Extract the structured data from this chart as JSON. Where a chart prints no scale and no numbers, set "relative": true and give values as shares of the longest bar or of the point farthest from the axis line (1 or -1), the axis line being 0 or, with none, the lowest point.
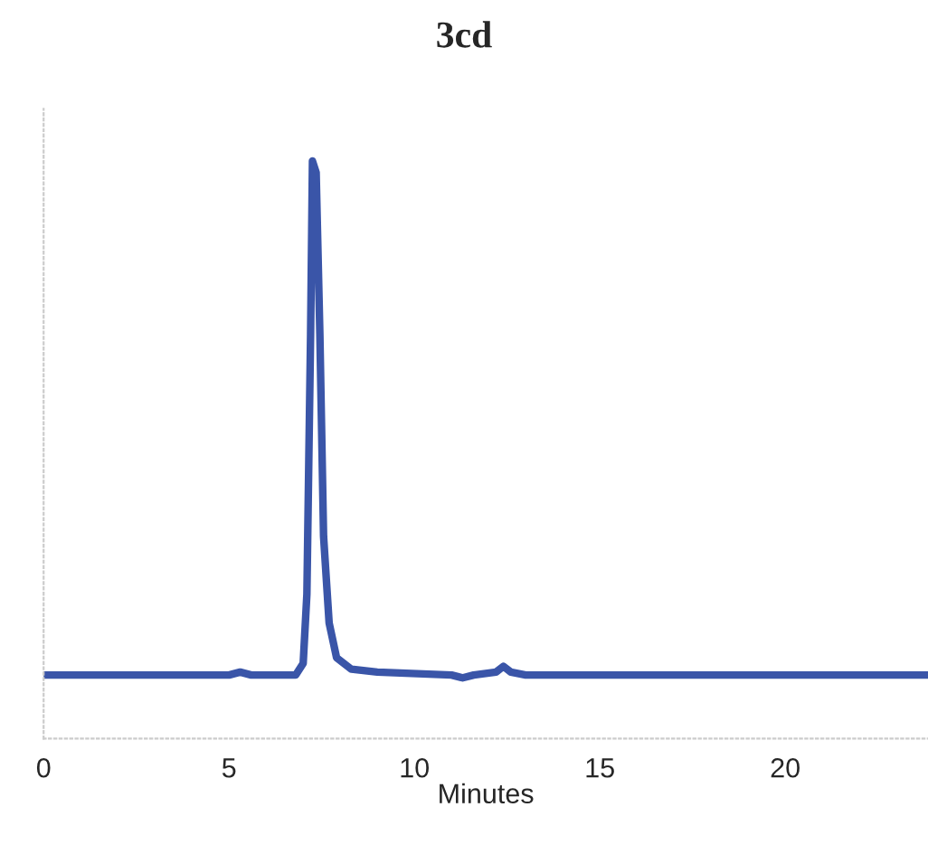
{
  "chart_data": {
    "type": "line",
    "title": "3cd",
    "xlabel": "Minutes",
    "relative": true,
    "xlim": [
      0,
      23.85
    ],
    "xticks": [
      0,
      5,
      10,
      15,
      20
    ],
    "tick_labels": "x",
    "grid": false,
    "legend": false,
    "series": [
      {
        "color": "#3a55a8",
        "x": [
          0,
          5.0,
          5.3,
          5.6,
          6.8,
          7.0,
          7.1,
          7.2,
          7.25,
          7.35,
          7.45,
          7.55,
          7.7,
          7.9,
          8.3,
          9.0,
          11.0,
          11.3,
          11.6,
          12.2,
          12.4,
          12.6,
          13.0,
          23.85
        ],
        "values": [
          0.11,
          0.11,
          0.115,
          0.11,
          0.11,
          0.13,
          0.25,
          0.7,
          1.0,
          0.98,
          0.7,
          0.35,
          0.2,
          0.14,
          0.12,
          0.115,
          0.11,
          0.105,
          0.11,
          0.115,
          0.125,
          0.115,
          0.11,
          0.11
        ]
      }
    ]
  }
}
